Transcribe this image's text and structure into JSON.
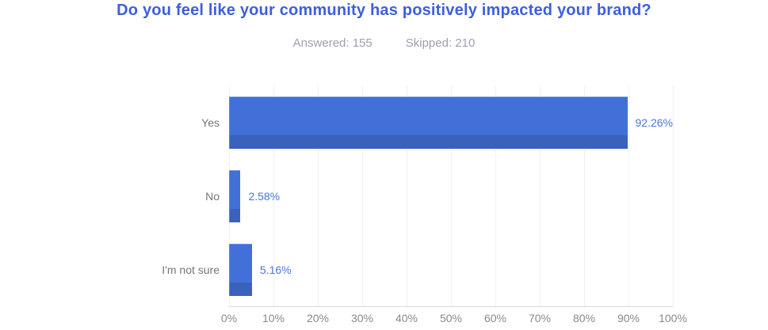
{
  "title": "Do you feel like your community has positively impacted your brand?",
  "stats": {
    "answered": "Answered: 155",
    "skipped": "Skipped: 210"
  },
  "chart_data": {
    "type": "bar",
    "orientation": "horizontal",
    "title": "Do you feel like your community has positively impacted your brand?",
    "answered_count": 155,
    "skipped_count": 210,
    "categories": [
      "Yes",
      "No",
      "I'm not sure"
    ],
    "values": [
      92.26,
      2.58,
      5.16
    ],
    "value_labels": [
      "92.26%",
      "2.58%",
      "5.16%"
    ],
    "x_ticks": [
      "0%",
      "10%",
      "20%",
      "30%",
      "40%",
      "50%",
      "60%",
      "70%",
      "80%",
      "90%",
      "100%"
    ],
    "xlim": [
      0,
      100
    ],
    "grid": "vertical",
    "legend": "none",
    "colors": {
      "bar": "#4070d8",
      "bar_bottom_shade": "#3a62bc",
      "title": "#3d5fdc",
      "value_label": "#4876e0",
      "category_label": "#74767b",
      "tick_label": "#87898e",
      "gridline": "#f0f0f3",
      "axis_line": "#d9dadd"
    }
  }
}
